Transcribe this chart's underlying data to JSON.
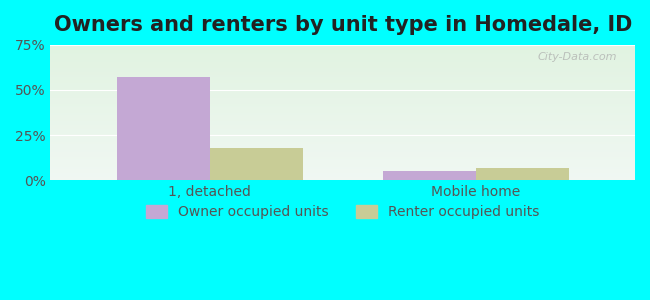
{
  "title": "Owners and renters by unit type in Homedale, ID",
  "categories": [
    "1, detached",
    "Mobile home"
  ],
  "owner_values": [
    57.0,
    5.0
  ],
  "renter_values": [
    18.0,
    6.5
  ],
  "owner_color": "#c4a8d4",
  "renter_color": "#c8cc96",
  "ylim": [
    0,
    75
  ],
  "yticks": [
    0,
    25,
    50,
    75
  ],
  "ytick_labels": [
    "0%",
    "25%",
    "50%",
    "75%"
  ],
  "bar_width": 0.35,
  "background_top": "#e8f5e8",
  "background_bottom": "#d0f5f0",
  "outer_bg": "#00ffff",
  "legend_labels": [
    "Owner occupied units",
    "Renter occupied units"
  ],
  "watermark": "City-Data.com",
  "title_fontsize": 15,
  "axis_fontsize": 10,
  "legend_fontsize": 10
}
